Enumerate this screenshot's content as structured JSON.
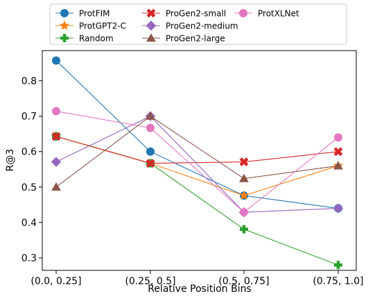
{
  "chart_data": {
    "type": "line",
    "title": "",
    "xlabel": "Relative Position Bins",
    "ylabel": "R@3",
    "categories": [
      "(0.0, 0.25]",
      "(0.25, 0.5]",
      "(0.5, 0.75]",
      "(0.75, 1.0]"
    ],
    "ylim": [
      0.265,
      0.885
    ],
    "yticks": [
      0.3,
      0.4,
      0.5,
      0.6,
      0.7,
      0.8
    ],
    "ytick_labels": [
      "0.3",
      "0.4",
      "0.5",
      "0.6",
      "0.7",
      "0.8"
    ],
    "grid": false,
    "legend_position": "top",
    "series": [
      {
        "name": "ProtFIM",
        "color": "#1f77b4",
        "marker": "circle",
        "values": [
          0.857,
          0.6,
          0.476,
          0.44
        ]
      },
      {
        "name": "ProtGPT2-C",
        "color": "#ff7f0e",
        "marker": "star",
        "values": [
          0.643,
          0.567,
          0.476,
          0.56
        ]
      },
      {
        "name": "Random",
        "color": "#2ca02c",
        "marker": "plus",
        "values": [
          0.643,
          0.567,
          0.381,
          0.28
        ]
      },
      {
        "name": "ProGen2-small",
        "color": "#d62728",
        "marker": "x",
        "values": [
          0.643,
          0.567,
          0.571,
          0.6
        ]
      },
      {
        "name": "ProGen2-medium",
        "color": "#9467bd",
        "marker": "diamond",
        "values": [
          0.571,
          0.7,
          0.429,
          0.44
        ]
      },
      {
        "name": "ProGen2-large",
        "color": "#8c564b",
        "marker": "triangle",
        "values": [
          0.5,
          0.7,
          0.524,
          0.56
        ]
      },
      {
        "name": "ProtXLNet",
        "color": "#e377c2",
        "marker": "circle",
        "values": [
          0.714,
          0.667,
          0.429,
          0.64
        ]
      }
    ]
  }
}
